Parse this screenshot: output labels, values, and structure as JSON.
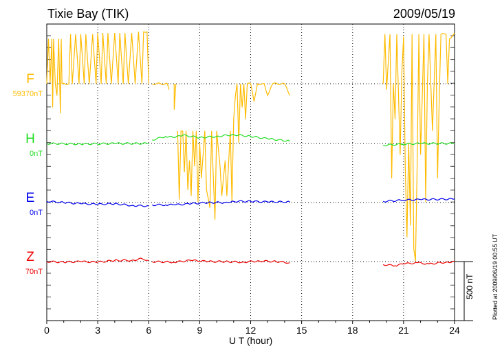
{
  "header": {
    "station": "Tixie Bay (TIK)",
    "date": "2009/05/19"
  },
  "footer": {
    "plotted": "Plotted at 2009/06/19 00:55 UT"
  },
  "chart_data": {
    "type": "line",
    "xlabel": "U T (hour)",
    "xlim": [
      0,
      24
    ],
    "xticks": [
      "0",
      "3",
      "6",
      "9",
      "12",
      "15",
      "18",
      "21",
      "24"
    ],
    "scale_bar": "500 nT",
    "grid": true,
    "series": [
      {
        "name": "F",
        "baseline_label": "59370nT",
        "color": "#ffbb00",
        "segments": [
          [
            [
              0,
              0
            ],
            [
              0.1,
              380
            ],
            [
              0.2,
              10
            ],
            [
              0.3,
              380
            ],
            [
              0.35,
              -200
            ],
            [
              0.4,
              380
            ],
            [
              0.5,
              0
            ],
            [
              0.6,
              -100
            ],
            [
              0.7,
              380
            ],
            [
              0.8,
              -250
            ],
            [
              0.85,
              380
            ],
            [
              0.9,
              0
            ],
            [
              1.3,
              0
            ],
            [
              1.4,
              420
            ],
            [
              1.5,
              0
            ],
            [
              1.7,
              420
            ],
            [
              1.9,
              0
            ],
            [
              2.0,
              420
            ],
            [
              2.2,
              0
            ],
            [
              2.3,
              420
            ],
            [
              2.5,
              0
            ],
            [
              2.7,
              420
            ],
            [
              2.9,
              0
            ],
            [
              3.0,
              430
            ],
            [
              3.2,
              0
            ],
            [
              3.3,
              430
            ],
            [
              3.5,
              0
            ],
            [
              3.6,
              430
            ],
            [
              3.8,
              0
            ],
            [
              4.0,
              430
            ],
            [
              4.2,
              0
            ],
            [
              4.3,
              430
            ],
            [
              4.5,
              0
            ],
            [
              4.6,
              430
            ],
            [
              4.8,
              0
            ],
            [
              5.0,
              430
            ],
            [
              5.2,
              0
            ],
            [
              5.4,
              440
            ],
            [
              5.6,
              0
            ],
            [
              5.7,
              440
            ],
            [
              5.9,
              440
            ],
            [
              6.0,
              0
            ]
          ],
          [
            [
              6.2,
              0
            ],
            [
              7.1,
              0
            ],
            [
              7.2,
              -50
            ]
          ],
          [
            [
              7.5,
              0
            ],
            [
              7.5,
              -220
            ],
            [
              7.6,
              0
            ]
          ],
          [
            [
              7.7,
              -400
            ],
            [
              7.8,
              -980
            ],
            [
              7.9,
              -400
            ],
            [
              8.0,
              -400
            ],
            [
              8.1,
              -750
            ],
            [
              8.2,
              -400
            ],
            [
              8.3,
              -900
            ],
            [
              8.4,
              -650
            ],
            [
              8.5,
              -950
            ],
            [
              8.6,
              -400
            ],
            [
              8.7,
              -700
            ],
            [
              8.8,
              -400
            ],
            [
              8.9,
              -1000
            ],
            [
              9.0,
              -500
            ],
            [
              9.1,
              -800
            ],
            [
              9.3,
              -400
            ],
            [
              9.4,
              -900
            ],
            [
              9.6,
              -1050
            ],
            [
              9.7,
              -400
            ],
            [
              9.9,
              -1150
            ],
            [
              10.0,
              -400
            ],
            [
              10.2,
              -700
            ],
            [
              10.3,
              -950
            ],
            [
              10.5,
              -650
            ],
            [
              10.6,
              -950
            ],
            [
              10.8,
              -400
            ],
            [
              10.9,
              -1000
            ],
            [
              11.0,
              -300
            ],
            [
              11.1,
              -100
            ],
            [
              11.2,
              0
            ],
            [
              11.3,
              -500
            ],
            [
              11.4,
              0
            ],
            [
              11.5,
              -200
            ],
            [
              11.6,
              0
            ],
            [
              11.7,
              -300
            ],
            [
              11.8,
              0
            ],
            [
              12.0,
              0
            ],
            [
              12.2,
              -150
            ],
            [
              12.4,
              0
            ],
            [
              12.8,
              0
            ],
            [
              13.0,
              -100
            ],
            [
              13.3,
              0
            ],
            [
              14.0,
              0
            ],
            [
              14.3,
              -100
            ]
          ],
          [
            [
              19.8,
              0
            ],
            [
              19.9,
              420
            ],
            [
              20.0,
              -50
            ],
            [
              20.2,
              420
            ],
            [
              20.3,
              -800
            ],
            [
              20.4,
              0
            ],
            [
              20.5,
              -300
            ],
            [
              20.6,
              420
            ],
            [
              20.8,
              -600
            ],
            [
              20.9,
              100
            ],
            [
              21.0,
              400
            ],
            [
              21.1,
              -700
            ],
            [
              21.2,
              -1300
            ],
            [
              21.3,
              -500
            ],
            [
              21.4,
              -1200
            ],
            [
              21.5,
              420
            ],
            [
              21.6,
              -1400
            ],
            [
              21.7,
              -1500
            ],
            [
              21.8,
              -700
            ],
            [
              21.9,
              420
            ],
            [
              22.0,
              -600
            ],
            [
              22.2,
              420
            ],
            [
              22.3,
              -1000
            ],
            [
              22.4,
              0
            ],
            [
              22.5,
              420
            ],
            [
              22.7,
              -400
            ],
            [
              22.9,
              420
            ],
            [
              23.0,
              -800
            ],
            [
              23.1,
              -100
            ],
            [
              23.2,
              420
            ],
            [
              23.5,
              420
            ],
            [
              23.6,
              0
            ],
            [
              23.7,
              380
            ],
            [
              24,
              430
            ]
          ]
        ]
      },
      {
        "name": "H",
        "baseline_label": "0nT",
        "color": "#22dd22",
        "segments": [
          [
            [
              0,
              0
            ],
            [
              2,
              -5
            ],
            [
              4,
              0
            ],
            [
              6,
              0
            ]
          ],
          [
            [
              6.2,
              30
            ],
            [
              7.0,
              60
            ],
            [
              7.5,
              50
            ],
            [
              8.0,
              70
            ],
            [
              9,
              50
            ],
            [
              10,
              60
            ],
            [
              11,
              75
            ],
            [
              12,
              60
            ],
            [
              13,
              40
            ],
            [
              14.3,
              20
            ]
          ],
          [
            [
              19.8,
              -15
            ],
            [
              21,
              -5
            ],
            [
              22,
              0
            ],
            [
              24,
              0
            ]
          ]
        ]
      },
      {
        "name": "E",
        "baseline_label": "0nT",
        "color": "#0000ee",
        "segments": [
          [
            [
              0,
              10
            ],
            [
              1,
              0
            ],
            [
              2,
              -10
            ],
            [
              3,
              -15
            ],
            [
              4,
              -10
            ],
            [
              5,
              -25
            ],
            [
              6,
              -30
            ]
          ],
          [
            [
              6.2,
              -20
            ],
            [
              7.0,
              -20
            ],
            [
              7.5,
              -20
            ],
            [
              8.5,
              -10
            ],
            [
              9.5,
              0
            ],
            [
              10.5,
              0
            ],
            [
              11.0,
              10
            ],
            [
              12,
              10
            ],
            [
              13,
              5
            ],
            [
              14.3,
              5
            ]
          ],
          [
            [
              19.8,
              10
            ],
            [
              21,
              20
            ],
            [
              22,
              25
            ],
            [
              24,
              30
            ]
          ]
        ]
      },
      {
        "name": "Z",
        "baseline_label": "70nT",
        "color": "#ee0000",
        "segments": [
          [
            [
              0,
              0
            ],
            [
              1,
              -5
            ],
            [
              2,
              0
            ],
            [
              3,
              -5
            ],
            [
              4,
              10
            ],
            [
              5,
              10
            ],
            [
              5.6,
              25
            ],
            [
              6,
              10
            ]
          ],
          [
            [
              6.2,
              0
            ],
            [
              7.5,
              -5
            ],
            [
              8.5,
              10
            ],
            [
              9.5,
              0
            ],
            [
              10.5,
              0
            ],
            [
              11.5,
              -5
            ],
            [
              12.5,
              5
            ],
            [
              13.5,
              0
            ],
            [
              14.3,
              -10
            ]
          ],
          [
            [
              19.8,
              -25
            ],
            [
              20.5,
              -35
            ],
            [
              21.0,
              -20
            ],
            [
              21.8,
              -10
            ],
            [
              22.5,
              -20
            ],
            [
              23.5,
              -5
            ],
            [
              24,
              0
            ]
          ]
        ]
      }
    ]
  }
}
